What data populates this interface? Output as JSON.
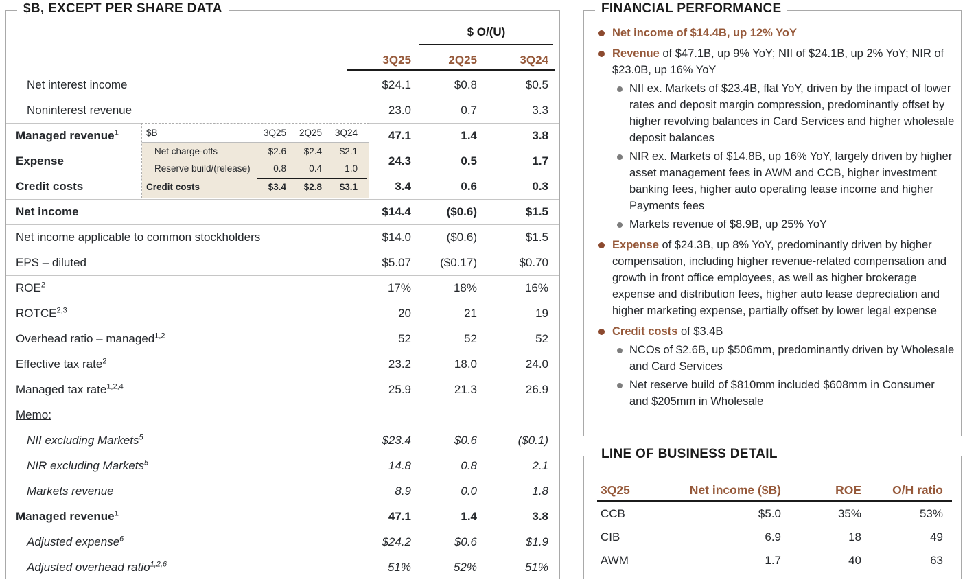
{
  "colors": {
    "accent_brown": "#96593A",
    "bullet_brown": "#8C4A2F",
    "bullet_gray": "#7D7D7D",
    "inset_beige": "#EFE8DB",
    "text": "#25282C",
    "line_dark": "#1B1B1B",
    "line_light": "#C6C6C6",
    "panel_border": "#A9A9A9"
  },
  "left_panel": {
    "title": "$B, EXCEPT PER SHARE DATA",
    "col_group_label": "$ O/(U)",
    "columns": [
      "3Q25",
      "2Q25",
      "3Q24"
    ],
    "rows": [
      {
        "label": "Net interest income",
        "indent": true,
        "values": [
          "$24.1",
          "$0.8",
          "$0.5"
        ]
      },
      {
        "label": "Noninterest revenue",
        "indent": true,
        "values": [
          "23.0",
          "0.7",
          "3.3"
        ]
      },
      {
        "label": "Managed revenue",
        "sup": "1",
        "bold": true,
        "sep": true,
        "values": [
          "47.1",
          "1.4",
          "3.8"
        ]
      },
      {
        "label": "Expense",
        "bold": true,
        "values": [
          "24.3",
          "0.5",
          "1.7"
        ]
      },
      {
        "label": "Credit costs",
        "bold": true,
        "values": [
          "3.4",
          "0.6",
          "0.3"
        ]
      },
      {
        "label": "Net income",
        "bold": true,
        "sep": true,
        "values": [
          "$14.4",
          "($0.6)",
          "$1.5"
        ]
      },
      {
        "label": "Net income applicable to common stockholders",
        "sep": true,
        "values": [
          "$14.0",
          "($0.6)",
          "$1.5"
        ]
      },
      {
        "label": "EPS – diluted",
        "sep": true,
        "values": [
          "$5.07",
          "($0.17)",
          "$0.70"
        ]
      },
      {
        "label": "ROE",
        "sup": "2",
        "sep": true,
        "values": [
          "17%",
          "18%",
          "16%"
        ]
      },
      {
        "label": "ROTCE",
        "sup": "2,3",
        "values": [
          "20",
          "21",
          "19"
        ]
      },
      {
        "label": "Overhead ratio – managed",
        "sup": "1,2",
        "values": [
          "52",
          "52",
          "52"
        ]
      },
      {
        "label": "Effective tax rate",
        "sup": "2",
        "values": [
          "23.2",
          "18.0",
          "24.0"
        ]
      },
      {
        "label": "Managed tax rate",
        "sup": "1,2,4",
        "values": [
          "25.9",
          "21.3",
          "26.9"
        ]
      },
      {
        "label": "Memo:",
        "memo": true,
        "values": [
          "",
          "",
          ""
        ]
      },
      {
        "label": "NII excluding Markets",
        "sup": "5",
        "italic": true,
        "indent": true,
        "values": [
          "$23.4",
          "$0.6",
          "($0.1)"
        ]
      },
      {
        "label": "NIR excluding Markets",
        "sup": "5",
        "italic": true,
        "indent": true,
        "values": [
          "14.8",
          "0.8",
          "2.1"
        ]
      },
      {
        "label": "Markets revenue",
        "italic": true,
        "indent": true,
        "values": [
          "8.9",
          "0.0",
          "1.8"
        ]
      },
      {
        "label": "Managed revenue",
        "sup": "1",
        "bold": true,
        "sep": true,
        "values": [
          "47.1",
          "1.4",
          "3.8"
        ]
      },
      {
        "label": "Adjusted expense",
        "sup": "6",
        "italic": true,
        "indent": true,
        "values": [
          "$24.2",
          "$0.6",
          "$1.9"
        ]
      },
      {
        "label": "Adjusted overhead ratio",
        "sup": "1,2,6",
        "italic": true,
        "indent": true,
        "values": [
          "51%",
          "52%",
          "51%"
        ]
      }
    ],
    "inset": {
      "unit_label": "$B",
      "columns": [
        "3Q25",
        "2Q25",
        "3Q24"
      ],
      "rows": [
        {
          "label": "Net charge-offs",
          "indent": true,
          "values": [
            "$2.6",
            "$2.4",
            "$2.1"
          ]
        },
        {
          "label": "Reserve build/(release)",
          "indent": true,
          "values": [
            "0.8",
            "0.4",
            "1.0"
          ]
        },
        {
          "label": "Credit costs",
          "bold": true,
          "values": [
            "$3.4",
            "$2.8",
            "$3.1"
          ]
        }
      ]
    }
  },
  "financial_performance": {
    "title": "FINANCIAL PERFORMANCE",
    "bullets": [
      {
        "level": 1,
        "lead": "Net income of $14.4B, up 12% YoY",
        "text": ""
      },
      {
        "level": 1,
        "lead": "Revenue",
        "text": " of $47.1B, up 9% YoY; NII of $24.1B, up 2% YoY; NIR of $23.0B, up 16% YoY"
      },
      {
        "level": 2,
        "text": "NII ex. Markets of $23.4B, flat YoY, driven by the impact of lower rates and deposit margin compression, predominantly offset by higher revolving balances in Card Services and higher wholesale deposit balances"
      },
      {
        "level": 2,
        "text": "NIR ex. Markets of $14.8B, up 16% YoY, largely driven by higher asset management fees in AWM and CCB, higher investment banking fees, higher auto operating lease income and higher Payments fees"
      },
      {
        "level": 2,
        "text": "Markets revenue of $8.9B, up 25% YoY"
      },
      {
        "level": 1,
        "lead": "Expense",
        "text": " of $24.3B, up 8% YoY, predominantly driven by higher compensation, including higher revenue-related compensation and growth in front office employees, as well as higher brokerage expense and distribution fees, higher auto lease depreciation and higher marketing expense, partially offset by lower legal expense"
      },
      {
        "level": 1,
        "lead": "Credit costs",
        "text": " of $3.4B"
      },
      {
        "level": 2,
        "text": "NCOs of $2.6B, up $506mm, predominantly driven by Wholesale and Card Services"
      },
      {
        "level": 2,
        "text": "Net reserve build of $810mm included $608mm in Consumer and $205mm in Wholesale"
      }
    ]
  },
  "line_of_business": {
    "title": "LINE OF BUSINESS DETAIL",
    "columns": [
      "3Q25",
      "Net income ($B)",
      "ROE",
      "O/H ratio"
    ],
    "rows": [
      {
        "label": "CCB",
        "values": [
          "$5.0",
          "35%",
          "53%"
        ]
      },
      {
        "label": "CIB",
        "values": [
          "6.9",
          "18",
          "49"
        ]
      },
      {
        "label": "AWM",
        "values": [
          "1.7",
          "40",
          "63"
        ]
      }
    ]
  }
}
